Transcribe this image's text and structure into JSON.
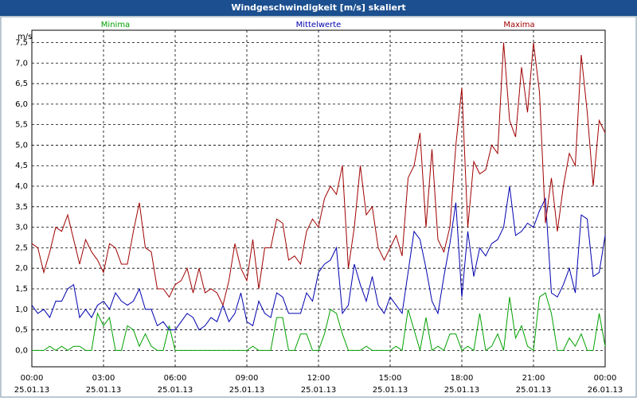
{
  "window_title": "Windgeschwindigkeit [m/s] skaliert",
  "chart_data": {
    "type": "line",
    "y_unit": "m/s",
    "x": [
      0,
      0.25,
      0.5,
      0.75,
      1,
      1.25,
      1.5,
      1.75,
      2,
      2.25,
      2.5,
      2.75,
      3,
      3.25,
      3.5,
      3.75,
      4,
      4.25,
      4.5,
      4.75,
      5,
      5.25,
      5.5,
      5.75,
      6,
      6.25,
      6.5,
      6.75,
      7,
      7.25,
      7.5,
      7.75,
      8,
      8.25,
      8.5,
      8.75,
      9,
      9.25,
      9.5,
      9.75,
      10,
      10.25,
      10.5,
      10.75,
      11,
      11.25,
      11.5,
      11.75,
      12,
      12.25,
      12.5,
      12.75,
      13,
      13.25,
      13.5,
      13.75,
      14,
      14.25,
      14.5,
      14.75,
      15,
      15.25,
      15.5,
      15.75,
      16,
      16.25,
      16.5,
      16.75,
      17,
      17.25,
      17.5,
      17.75,
      18,
      18.25,
      18.5,
      18.75,
      19,
      19.25,
      19.5,
      19.75,
      20,
      20.25,
      20.5,
      20.75,
      21,
      21.25,
      21.5,
      21.75,
      22,
      22.25,
      22.5,
      22.75,
      23,
      23.25,
      23.5,
      23.75,
      24
    ],
    "series": [
      {
        "name": "Minima",
        "color": "#00a000",
        "values": [
          0.0,
          0.0,
          0.0,
          0.1,
          0.0,
          0.1,
          0.0,
          0.1,
          0.1,
          0.0,
          0.0,
          0.9,
          0.6,
          0.8,
          0.0,
          0.0,
          0.6,
          0.5,
          0.1,
          0.4,
          0.1,
          0.0,
          0.0,
          0.6,
          0.0,
          0.0,
          0.0,
          0.0,
          0.0,
          0.0,
          0.0,
          0.0,
          0.0,
          0.0,
          0.0,
          0.0,
          0.0,
          0.1,
          0.0,
          0.0,
          0.0,
          0.8,
          0.8,
          0.0,
          0.0,
          0.4,
          0.4,
          0.0,
          0.0,
          0.4,
          1.0,
          0.9,
          0.4,
          0.0,
          0.0,
          0.0,
          0.1,
          0.0,
          0.0,
          0.0,
          0.0,
          0.1,
          0.0,
          1.0,
          0.5,
          0.0,
          0.8,
          0.0,
          0.1,
          0.0,
          0.4,
          0.4,
          0.0,
          0.1,
          0.0,
          0.9,
          0.0,
          0.1,
          0.4,
          0.0,
          1.3,
          0.3,
          0.6,
          0.1,
          0.0,
          1.3,
          1.4,
          0.9,
          0.0,
          0.0,
          0.3,
          0.1,
          0.4,
          0.0,
          0.0,
          0.9,
          0.1
        ]
      },
      {
        "name": "Mittelwerte",
        "color": "#0000b0",
        "values": [
          1.1,
          0.9,
          1.0,
          0.8,
          1.2,
          1.2,
          1.5,
          1.6,
          0.8,
          1.0,
          0.8,
          1.1,
          1.2,
          1.0,
          1.4,
          1.2,
          1.1,
          1.2,
          1.5,
          1.0,
          1.0,
          0.6,
          0.7,
          0.5,
          0.5,
          0.7,
          0.9,
          0.8,
          0.5,
          0.6,
          0.8,
          0.7,
          1.1,
          0.7,
          0.9,
          1.4,
          0.7,
          0.6,
          1.2,
          0.9,
          0.8,
          1.4,
          1.3,
          0.9,
          0.9,
          0.9,
          1.4,
          1.2,
          1.9,
          2.1,
          2.2,
          2.5,
          0.9,
          1.1,
          2.1,
          1.6,
          1.2,
          1.8,
          1.1,
          0.9,
          1.3,
          1.1,
          0.9,
          1.9,
          2.9,
          2.7,
          2.0,
          1.2,
          0.9,
          1.8,
          2.6,
          3.6,
          1.3,
          2.9,
          1.8,
          2.5,
          2.3,
          2.6,
          2.7,
          3.0,
          4.0,
          2.8,
          2.9,
          3.1,
          3.0,
          3.4,
          3.7,
          1.4,
          1.3,
          1.6,
          2.0,
          1.4,
          3.3,
          3.2,
          1.8,
          1.9,
          2.8
        ]
      },
      {
        "name": "Maxima",
        "color": "#a00000",
        "values": [
          2.6,
          2.5,
          1.9,
          2.4,
          3.0,
          2.9,
          3.3,
          2.7,
          2.1,
          2.7,
          2.4,
          2.2,
          1.9,
          2.6,
          2.5,
          2.1,
          2.1,
          2.9,
          3.6,
          2.5,
          2.4,
          1.5,
          1.5,
          1.3,
          1.6,
          1.7,
          2.0,
          1.4,
          2.0,
          1.4,
          1.5,
          1.4,
          1.1,
          1.7,
          2.6,
          2.0,
          1.7,
          2.7,
          1.5,
          2.5,
          2.5,
          3.2,
          3.1,
          2.2,
          2.3,
          2.1,
          2.9,
          3.2,
          3.0,
          3.7,
          4.0,
          3.8,
          4.5,
          2.0,
          3.0,
          4.5,
          3.3,
          3.5,
          2.5,
          2.2,
          2.5,
          2.8,
          2.3,
          4.2,
          4.5,
          5.3,
          3.0,
          4.9,
          2.7,
          2.4,
          3.0,
          5.0,
          6.4,
          3.0,
          4.6,
          4.3,
          4.4,
          5.0,
          4.8,
          7.5,
          5.6,
          5.2,
          6.9,
          5.8,
          7.5,
          6.3,
          3.1,
          4.2,
          2.9,
          4.0,
          4.8,
          4.5,
          7.2,
          5.8,
          4.0,
          5.6,
          5.3
        ]
      }
    ],
    "xlim": [
      0,
      24
    ],
    "xticks": [
      {
        "value": 0,
        "label": "00:00"
      },
      {
        "value": 3,
        "label": "03:00"
      },
      {
        "value": 6,
        "label": "06:00"
      },
      {
        "value": 9,
        "label": "09:00"
      },
      {
        "value": 12,
        "label": "12:00"
      },
      {
        "value": 15,
        "label": "15:00"
      },
      {
        "value": 18,
        "label": "18:00"
      },
      {
        "value": 21,
        "label": "21:00"
      },
      {
        "value": 24,
        "label": "00:00"
      }
    ],
    "xtick_dates": [
      "25.01.13",
      "25.01.13",
      "25.01.13",
      "25.01.13",
      "25.01.13",
      "25.01.13",
      "25.01.13",
      "25.01.13",
      "26.01.13"
    ],
    "ylim": [
      -0.4,
      7.8
    ],
    "yticks": [
      {
        "value": 0,
        "label": "0,0"
      },
      {
        "value": 0.5,
        "label": "0,5"
      },
      {
        "value": 1,
        "label": "1,0"
      },
      {
        "value": 1.5,
        "label": "1,5"
      },
      {
        "value": 2,
        "label": "2,0"
      },
      {
        "value": 2.5,
        "label": "2,5"
      },
      {
        "value": 3,
        "label": "3,0"
      },
      {
        "value": 3.5,
        "label": "3,5"
      },
      {
        "value": 4,
        "label": "4,0"
      },
      {
        "value": 4.5,
        "label": "4,5"
      },
      {
        "value": 5,
        "label": "5,0"
      },
      {
        "value": 5.5,
        "label": "5,5"
      },
      {
        "value": 6,
        "label": "6,0"
      },
      {
        "value": 6.5,
        "label": "6,5"
      },
      {
        "value": 7,
        "label": "7,0"
      },
      {
        "value": 7.5,
        "label": "7,5"
      }
    ],
    "grid": true
  }
}
